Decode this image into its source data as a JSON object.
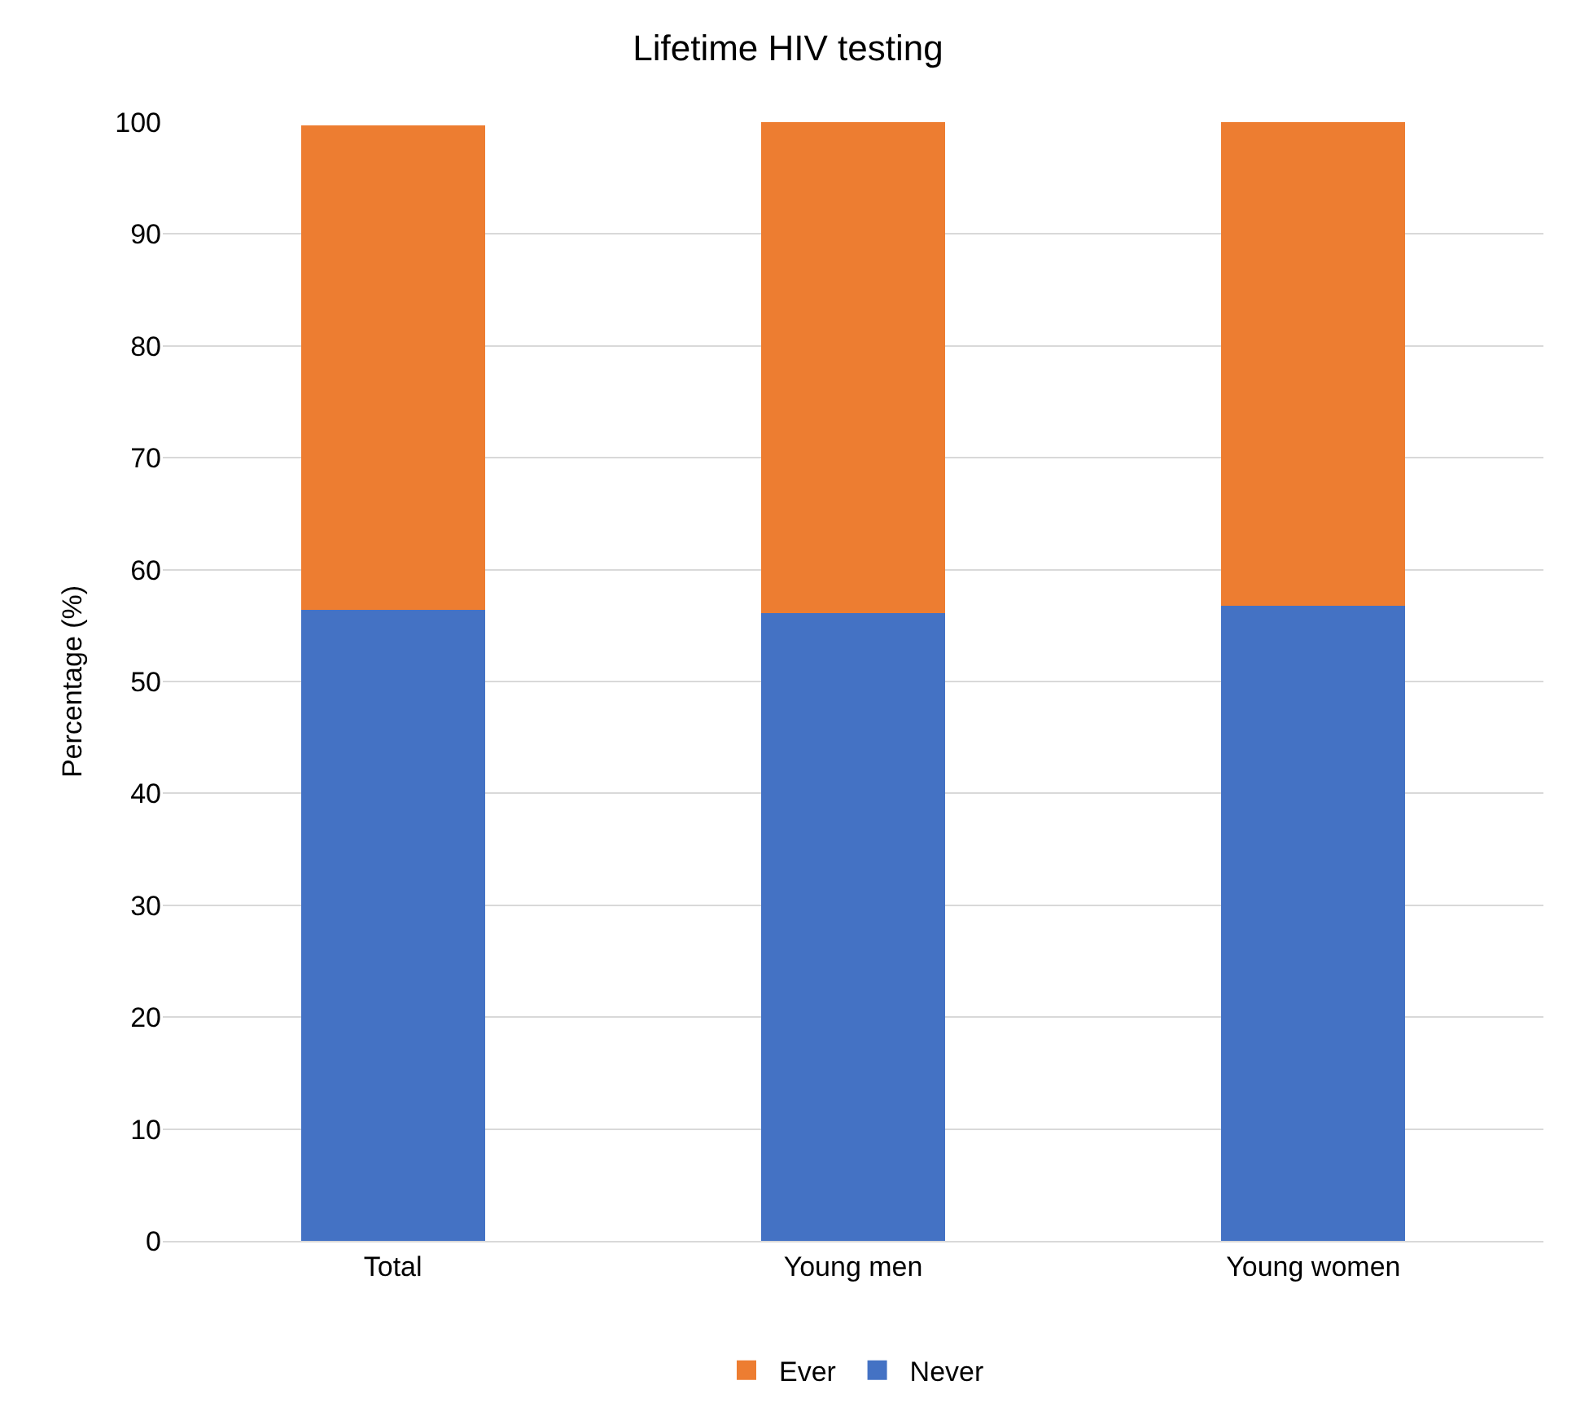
{
  "chart_data": {
    "type": "bar",
    "title": "Lifetime HIV testing",
    "ylabel": "Percentage (%)",
    "categories": [
      "Total",
      "Young men",
      "Young women"
    ],
    "series": [
      {
        "name": "Never",
        "color": "#4472c4",
        "values": [
          56.4,
          56.1,
          56.8
        ]
      },
      {
        "name": "Ever",
        "color": "#ed7d31",
        "values": [
          43.3,
          43.9,
          43.2
        ]
      }
    ],
    "stacked": true,
    "ylim": [
      0,
      100
    ],
    "yticks": [
      0,
      10,
      20,
      30,
      40,
      50,
      60,
      70,
      80,
      90,
      100
    ],
    "grid": "y",
    "legend": "bottom"
  }
}
